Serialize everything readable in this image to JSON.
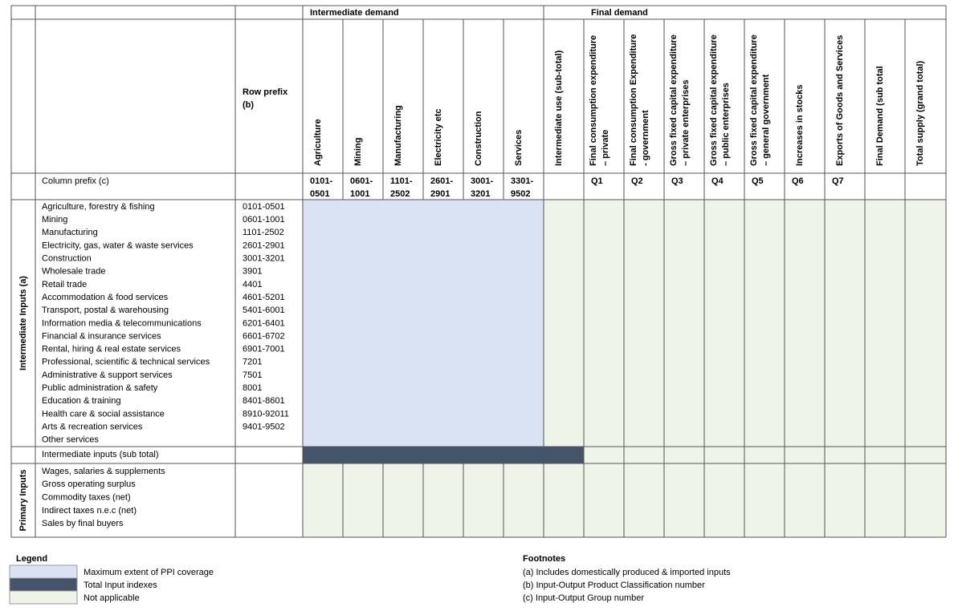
{
  "table": {
    "group_headers": [
      "Intermediate demand",
      "Final demand"
    ],
    "row_prefix_header": [
      "Row prefix",
      "(b)"
    ],
    "column_prefix_label": "Column prefix (c)",
    "columns": [
      {
        "header": [
          "Agriculture"
        ],
        "prefix": [
          "0101-",
          "0501"
        ]
      },
      {
        "header": [
          "Mining"
        ],
        "prefix": [
          "0601-",
          "1001"
        ]
      },
      {
        "header": [
          "Manufacturing"
        ],
        "prefix": [
          "1101-",
          "2502"
        ]
      },
      {
        "header": [
          "Electricity etc"
        ],
        "prefix": [
          "2601-",
          "2901"
        ]
      },
      {
        "header": [
          "Construction"
        ],
        "prefix": [
          "3001-",
          "3201"
        ]
      },
      {
        "header": [
          "Services"
        ],
        "prefix": [
          "3301-",
          "9502"
        ]
      },
      {
        "header": [
          "Intermediate use (sub-total)"
        ],
        "prefix": null
      },
      {
        "header": [
          "Final consumption expenditure",
          "– private"
        ],
        "prefix": [
          "Q1"
        ]
      },
      {
        "header": [
          "Final consumption Expenditure",
          "- government"
        ],
        "prefix": [
          "Q2"
        ]
      },
      {
        "header": [
          "Gross fixed capital expenditure",
          "– private enterprises"
        ],
        "prefix": [
          "Q3"
        ]
      },
      {
        "header": [
          "Gross fixed capital expenditure",
          "– public enterprises"
        ],
        "prefix": [
          "Q4"
        ]
      },
      {
        "header": [
          "Gross fixed capital expenditure",
          "– general government"
        ],
        "prefix": [
          "Q5"
        ]
      },
      {
        "header": [
          "Increases in stocks"
        ],
        "prefix": [
          "Q6"
        ]
      },
      {
        "header": [
          "Exports of Goods and Services"
        ],
        "prefix": [
          "Q7"
        ]
      },
      {
        "header": [
          "Final Demand (sub total"
        ],
        "prefix": null
      },
      {
        "header": [
          "Total supply (grand total)"
        ],
        "prefix": null
      }
    ],
    "intermediate_group_label": "Intermediate Inputs (a)",
    "intermediate_rows": [
      {
        "name": "Agriculture, forestry & fishing",
        "prefix": "0101-0501"
      },
      {
        "name": "Mining",
        "prefix": "0601-1001"
      },
      {
        "name": "Manufacturing",
        "prefix": "1101-2502"
      },
      {
        "name": "Electricity, gas, water & waste services",
        "prefix": "2601-2901"
      },
      {
        "name": "Construction",
        "prefix": "3001-3201"
      },
      {
        "name": "Wholesale trade",
        "prefix": "3901"
      },
      {
        "name": "Retail trade",
        "prefix": "4401"
      },
      {
        "name": "Accommodation & food services",
        "prefix": "4601-5201"
      },
      {
        "name": "Transport, postal & warehousing",
        "prefix": "5401-6001"
      },
      {
        "name": "Information media & telecommunications",
        "prefix": "6201-6401"
      },
      {
        "name": "Financial & insurance services",
        "prefix": "6601-6702"
      },
      {
        "name": "Rental, hiring & real estate services",
        "prefix": "6901-7001"
      },
      {
        "name": "Professional, scientific & technical services",
        "prefix": "7201"
      },
      {
        "name": "Administrative & support services",
        "prefix": "7501"
      },
      {
        "name": "Public administration & safety",
        "prefix": "8001"
      },
      {
        "name": "Education & training",
        "prefix": "8401-8601"
      },
      {
        "name": "Health care & social assistance",
        "prefix": "8910-92011"
      },
      {
        "name": "Arts & recreation services",
        "prefix": "9401-9502"
      },
      {
        "name": "Other services",
        "prefix": null
      }
    ],
    "subtotal_row": "Intermediate inputs (sub total)",
    "primary_group_label": "Primary Inputs",
    "primary_rows": [
      "Wages, salaries & supplements",
      "Gross operating surplus",
      "Commodity taxes (net)",
      "Indirect taxes n.e.c (net)",
      "Sales by final buyers"
    ],
    "legend": {
      "title": "Legend",
      "items": [
        "Maximum extent of PPI coverage",
        "Total Input indexes",
        "Not applicable"
      ]
    },
    "footnotes": {
      "title": "Footnotes",
      "items": [
        "(a) Includes domestically produced & imported inputs",
        "(b) Input-Output Product Classification number",
        "(c) Input-Output Group number"
      ]
    }
  }
}
